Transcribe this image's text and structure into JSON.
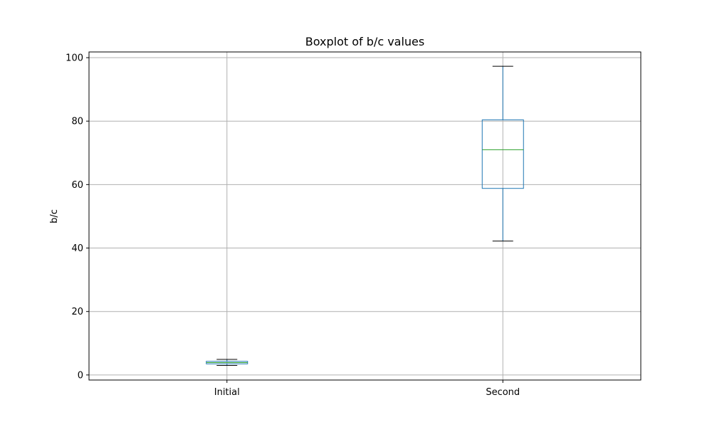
{
  "chart_data": {
    "type": "box",
    "title": "Boxplot of b/c values",
    "xlabel": "",
    "ylabel": "b/c",
    "ylim": [
      -1.6,
      101.8
    ],
    "yticks": [
      0,
      20,
      40,
      60,
      80,
      100
    ],
    "ytick_labels": [
      "0",
      "20",
      "40",
      "60",
      "80",
      "100"
    ],
    "grid": true,
    "categories": [
      "Initial",
      "Second"
    ],
    "boxes": [
      {
        "category": "Initial",
        "whisker_low": 3.0,
        "q1": 3.5,
        "median": 3.9,
        "q3": 4.3,
        "whisker_high": 4.9
      },
      {
        "category": "Second",
        "whisker_low": 42.2,
        "q1": 58.8,
        "median": 71.0,
        "q3": 80.4,
        "whisker_high": 97.3
      }
    ],
    "colors": {
      "box": "#1f77b4",
      "median": "#2ca02c",
      "whisker_cap": "#000000",
      "grid": "#b0b0b0",
      "axes": "#000000"
    }
  }
}
